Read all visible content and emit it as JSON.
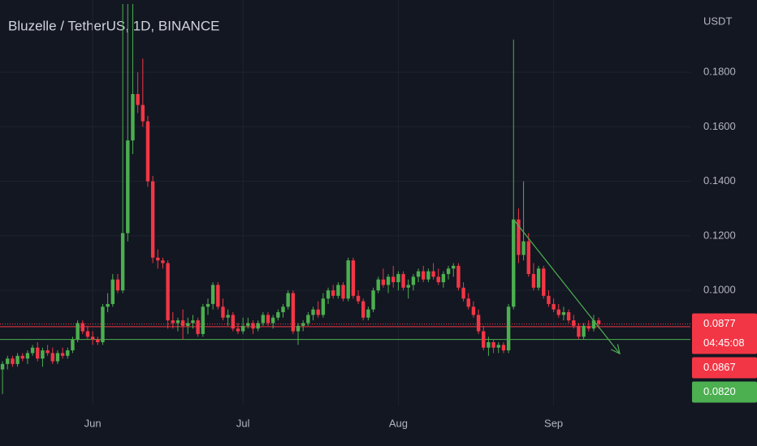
{
  "chart_data": {
    "type": "candlestick",
    "title": "Bluzelle / TetherUS, 1D, BINANCE",
    "y_axis_label": "USDT",
    "up_color": "#4caf50",
    "down_color": "#f23645",
    "grid": true,
    "xlim": [
      -0.5,
      137.3
    ],
    "xticks": [
      {
        "value": 18,
        "label": "Jun"
      },
      {
        "value": 48,
        "label": "Jul"
      },
      {
        "value": 79,
        "label": "Aug"
      },
      {
        "value": 110,
        "label": "Sep"
      }
    ],
    "ylim": [
      0.0578,
      0.2065
    ],
    "yticks": [
      {
        "value": 0.1,
        "label": "0.1000"
      },
      {
        "value": 0.12,
        "label": "0.1200"
      },
      {
        "value": 0.14,
        "label": "0.1400"
      },
      {
        "value": 0.16,
        "label": "0.1600"
      },
      {
        "value": 0.18,
        "label": "0.1800"
      }
    ],
    "open": [
      0.071,
      0.073,
      0.075,
      0.073,
      0.076,
      0.075,
      0.077,
      0.079,
      0.075,
      0.078,
      0.077,
      0.074,
      0.077,
      0.076,
      0.078,
      0.082,
      0.088,
      0.085,
      0.083,
      0.082,
      0.081,
      0.094,
      0.095,
      0.104,
      0.1,
      0.121,
      0.155,
      0.172,
      0.168,
      0.162,
      0.14,
      0.112,
      0.111,
      0.11,
      0.089,
      0.088,
      0.089,
      0.087,
      0.088,
      0.089,
      0.084,
      0.094,
      0.095,
      0.102,
      0.094,
      0.09,
      0.091,
      0.086,
      0.085,
      0.087,
      0.088,
      0.086,
      0.088,
      0.091,
      0.088,
      0.09,
      0.092,
      0.094,
      0.099,
      0.085,
      0.087,
      0.088,
      0.091,
      0.093,
      0.091,
      0.097,
      0.1,
      0.098,
      0.102,
      0.097,
      0.111,
      0.098,
      0.096,
      0.09,
      0.093,
      0.1,
      0.104,
      0.102,
      0.105,
      0.103,
      0.106,
      0.101,
      0.102,
      0.105,
      0.107,
      0.104,
      0.107,
      0.105,
      0.103,
      0.106,
      0.108,
      0.109,
      0.101,
      0.097,
      0.094,
      0.091,
      0.085,
      0.079,
      0.081,
      0.079,
      0.08,
      0.078,
      0.094,
      0.126,
      0.113,
      0.118,
      0.106,
      0.101,
      0.108,
      0.098,
      0.095,
      0.093,
      0.091,
      0.092,
      0.089,
      0.087,
      0.083,
      0.087,
      0.086,
      0.089
    ],
    "high": [
      0.074,
      0.076,
      0.076,
      0.077,
      0.077,
      0.078,
      0.08,
      0.081,
      0.079,
      0.08,
      0.079,
      0.078,
      0.079,
      0.079,
      0.083,
      0.089,
      0.089,
      0.087,
      0.085,
      0.083,
      0.095,
      0.099,
      0.106,
      0.106,
      0.205,
      0.205,
      0.205,
      0.18,
      0.185,
      0.164,
      0.142,
      0.115,
      0.112,
      0.111,
      0.092,
      0.09,
      0.093,
      0.09,
      0.091,
      0.09,
      0.095,
      0.097,
      0.103,
      0.103,
      0.097,
      0.093,
      0.092,
      0.088,
      0.09,
      0.09,
      0.089,
      0.089,
      0.092,
      0.092,
      0.091,
      0.093,
      0.095,
      0.1,
      0.1,
      0.088,
      0.089,
      0.092,
      0.094,
      0.096,
      0.099,
      0.101,
      0.102,
      0.103,
      0.103,
      0.112,
      0.112,
      0.1,
      0.097,
      0.094,
      0.101,
      0.105,
      0.108,
      0.106,
      0.109,
      0.107,
      0.107,
      0.104,
      0.106,
      0.108,
      0.109,
      0.108,
      0.11,
      0.108,
      0.107,
      0.109,
      0.11,
      0.11,
      0.103,
      0.099,
      0.096,
      0.093,
      0.087,
      0.083,
      0.082,
      0.081,
      0.081,
      0.095,
      0.192,
      0.13,
      0.14,
      0.121,
      0.11,
      0.109,
      0.109,
      0.1,
      0.097,
      0.095,
      0.094,
      0.093,
      0.091,
      0.088,
      0.088,
      0.089,
      0.091,
      0.09
    ],
    "low": [
      0.062,
      0.071,
      0.072,
      0.072,
      0.074,
      0.073,
      0.076,
      0.074,
      0.072,
      0.076,
      0.073,
      0.073,
      0.075,
      0.075,
      0.077,
      0.081,
      0.084,
      0.082,
      0.08,
      0.08,
      0.08,
      0.092,
      0.094,
      0.099,
      0.099,
      0.118,
      0.15,
      0.165,
      0.16,
      0.138,
      0.11,
      0.108,
      0.108,
      0.086,
      0.086,
      0.085,
      0.082,
      0.084,
      0.086,
      0.083,
      0.083,
      0.091,
      0.093,
      0.093,
      0.089,
      0.087,
      0.085,
      0.084,
      0.084,
      0.086,
      0.084,
      0.085,
      0.087,
      0.087,
      0.086,
      0.089,
      0.09,
      0.093,
      0.084,
      0.08,
      0.085,
      0.087,
      0.089,
      0.09,
      0.09,
      0.095,
      0.097,
      0.097,
      0.096,
      0.096,
      0.097,
      0.095,
      0.089,
      0.089,
      0.092,
      0.099,
      0.101,
      0.099,
      0.101,
      0.1,
      0.1,
      0.097,
      0.1,
      0.103,
      0.103,
      0.103,
      0.104,
      0.102,
      0.101,
      0.104,
      0.105,
      0.1,
      0.096,
      0.093,
      0.09,
      0.084,
      0.078,
      0.076,
      0.077,
      0.077,
      0.077,
      0.077,
      0.093,
      0.11,
      0.111,
      0.105,
      0.1,
      0.1,
      0.097,
      0.094,
      0.092,
      0.09,
      0.089,
      0.088,
      0.086,
      0.082,
      0.082,
      0.085,
      0.085,
      0.086
    ],
    "close": [
      0.073,
      0.075,
      0.073,
      0.076,
      0.075,
      0.077,
      0.079,
      0.075,
      0.078,
      0.077,
      0.074,
      0.077,
      0.076,
      0.078,
      0.082,
      0.088,
      0.085,
      0.083,
      0.082,
      0.081,
      0.094,
      0.095,
      0.104,
      0.1,
      0.121,
      0.155,
      0.172,
      0.168,
      0.162,
      0.14,
      0.112,
      0.111,
      0.11,
      0.089,
      0.088,
      0.089,
      0.087,
      0.088,
      0.089,
      0.084,
      0.094,
      0.095,
      0.102,
      0.094,
      0.09,
      0.091,
      0.086,
      0.085,
      0.087,
      0.088,
      0.086,
      0.088,
      0.091,
      0.088,
      0.09,
      0.092,
      0.094,
      0.099,
      0.085,
      0.087,
      0.088,
      0.091,
      0.093,
      0.091,
      0.097,
      0.1,
      0.098,
      0.102,
      0.097,
      0.111,
      0.098,
      0.096,
      0.09,
      0.093,
      0.1,
      0.104,
      0.102,
      0.105,
      0.103,
      0.106,
      0.101,
      0.102,
      0.105,
      0.107,
      0.104,
      0.107,
      0.105,
      0.103,
      0.106,
      0.108,
      0.109,
      0.101,
      0.097,
      0.094,
      0.091,
      0.085,
      0.079,
      0.081,
      0.079,
      0.08,
      0.078,
      0.094,
      0.126,
      0.113,
      0.118,
      0.106,
      0.101,
      0.108,
      0.098,
      0.095,
      0.093,
      0.091,
      0.092,
      0.089,
      0.087,
      0.083,
      0.087,
      0.086,
      0.089,
      0.0877
    ],
    "price_lines": [
      {
        "value": 0.0877,
        "label": "0.0877",
        "color": "#f23645",
        "dash": true,
        "countdown": "04:45:08"
      },
      {
        "value": 0.0867,
        "label": "0.0867",
        "color": "#f23645",
        "dash": false
      },
      {
        "value": 0.082,
        "label": "0.0820",
        "color": "#4caf50",
        "dash": false
      }
    ],
    "trendline": {
      "x": [
        102,
        123.2
      ],
      "y": [
        0.126,
        0.0768
      ],
      "color": "#4caf50"
    }
  }
}
